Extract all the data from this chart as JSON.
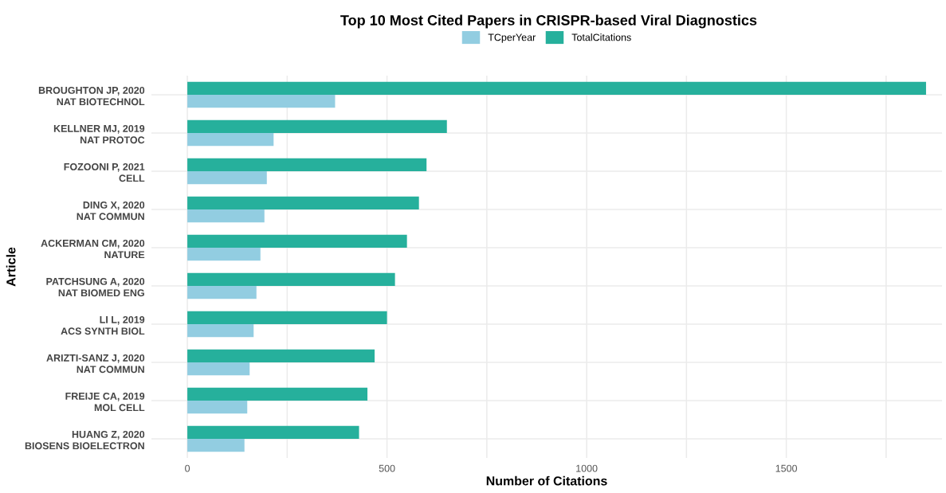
{
  "chart_data": {
    "type": "bar",
    "orientation": "horizontal",
    "title": "Top 10 Most Cited Papers in CRISPR-based Viral Diagnostics",
    "xlabel": "Number of Citations",
    "ylabel": "Article",
    "categories": [
      "BROUGHTON JP, 2020\nNAT BIOTECHNOL",
      "KELLNER MJ, 2019\nNAT PROTOC",
      "FOZOONI P, 2021\nCELL",
      "DING X, 2020\nNAT COMMUN",
      "ACKERMAN CM, 2020\nNATURE",
      "PATCHSUNG A, 2020\nNAT BIOMED ENG",
      "LI L, 2019\nACS SYNTH BIOL",
      "ARIZTI-SANZ J, 2020\nNAT COMMUN",
      "FREIJE CA, 2019\nMOL CELL",
      "HUANG Z, 2020\nBIOSENS BIOELECTRON"
    ],
    "series": [
      {
        "name": "TCperYear",
        "color": "#92cde1",
        "values": [
          370,
          216,
          199,
          193,
          183,
          173,
          166,
          156,
          150,
          143
        ]
      },
      {
        "name": "TotalCitations",
        "color": "#26b09c",
        "values": [
          1850,
          650,
          599,
          580,
          550,
          520,
          500,
          469,
          451,
          430
        ]
      }
    ],
    "xlim": [
      -90,
      1890
    ],
    "xticks": [
      0,
      {
        "value": 250,
        "label": null
      },
      500,
      {
        "value": 750,
        "label": null
      },
      1000,
      {
        "value": 1250,
        "label": null
      },
      1500,
      {
        "value": 1750,
        "label": null
      }
    ],
    "grid": true,
    "legend": "top"
  }
}
